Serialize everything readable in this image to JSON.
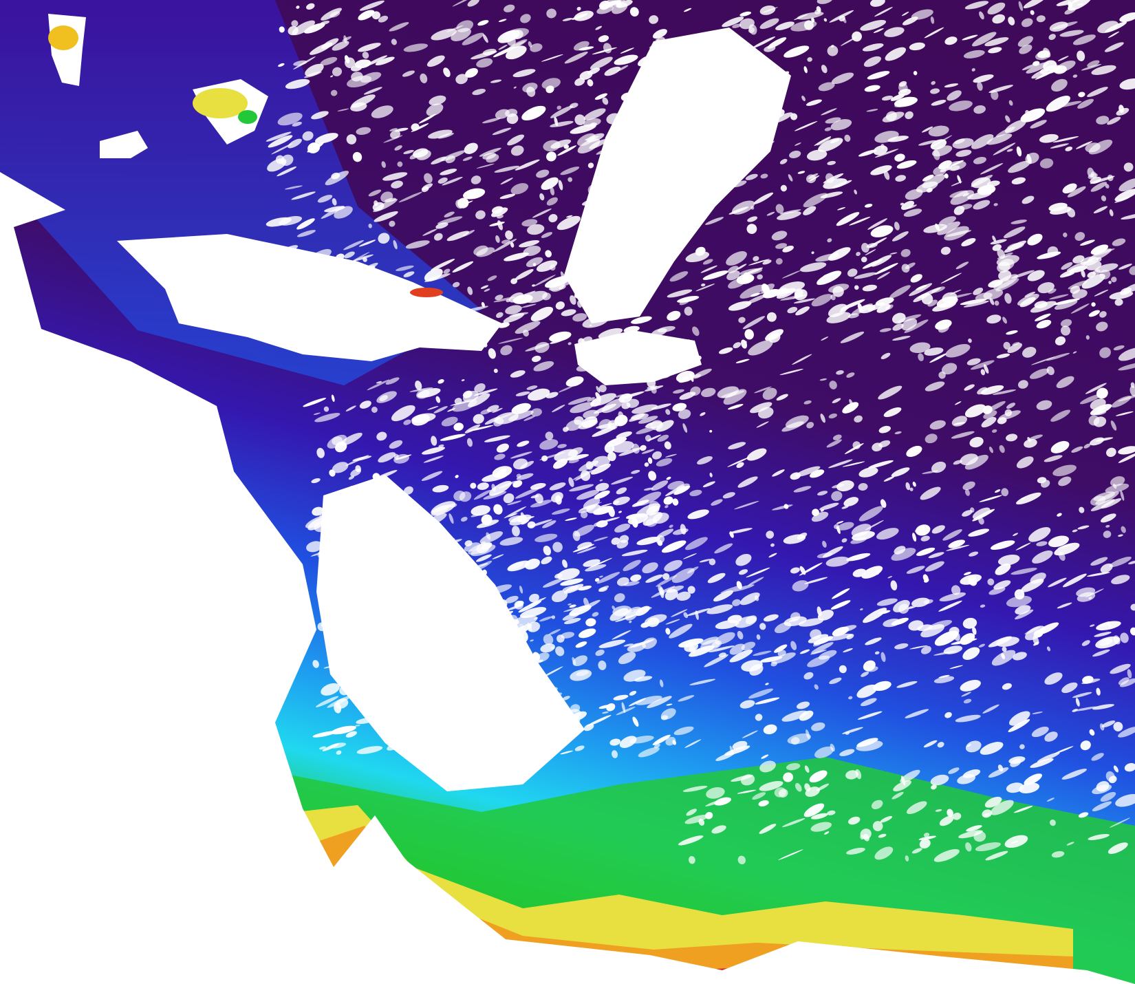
{
  "image": {
    "kind": "false-color satellite ocean map",
    "colors": {
      "deep": "#3f0a5a",
      "indigo": "#3a14a8",
      "blue": "#2050e0",
      "sky": "#1e9af0",
      "cyan": "#20d8f0",
      "green": "#22c83a",
      "darkgreen": "#1a8a30",
      "yellow": "#e8e040",
      "orange": "#f0a020",
      "red": "#d02828",
      "cloud": "#ffffff"
    }
  }
}
